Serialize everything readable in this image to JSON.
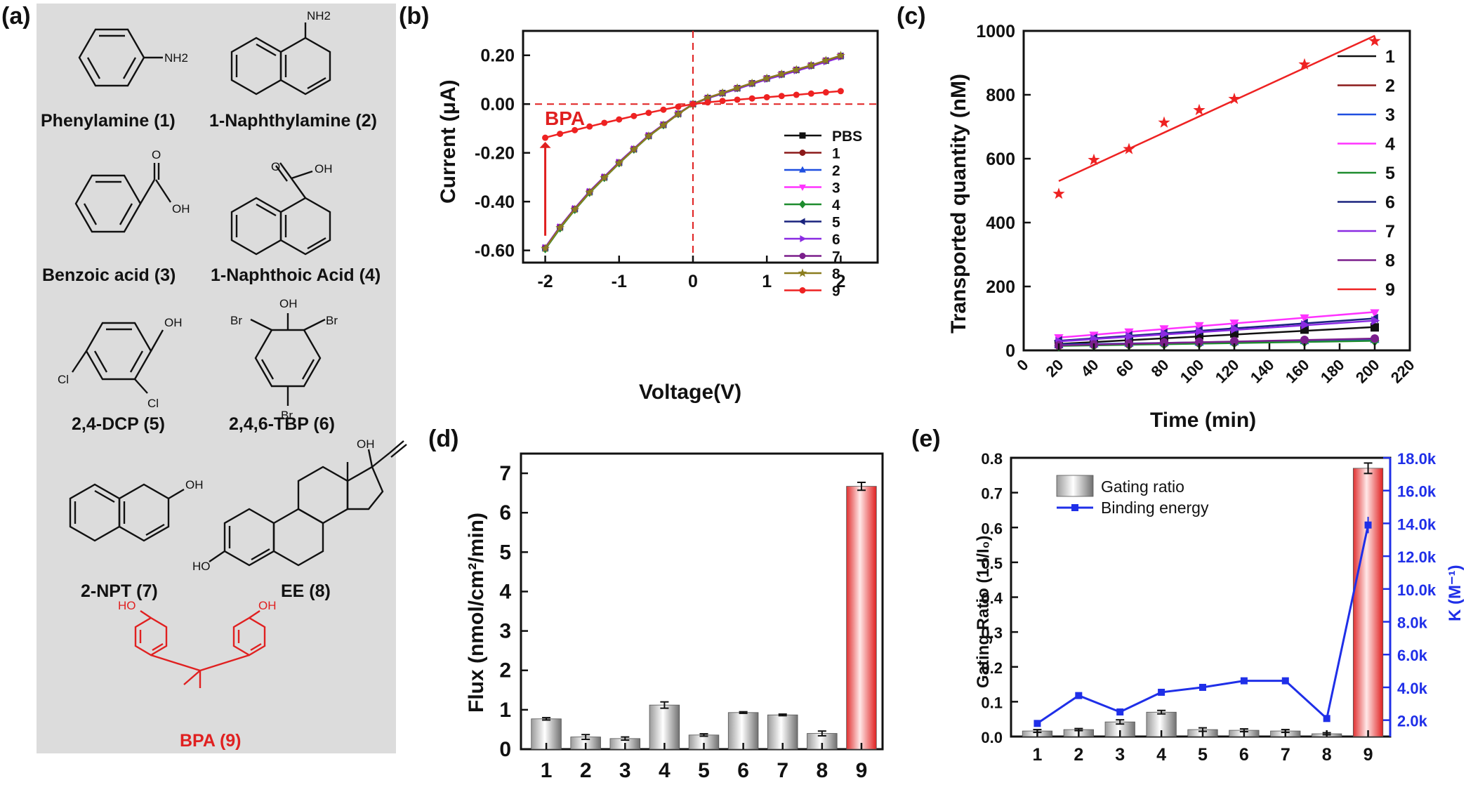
{
  "panel_labels": [
    "(a)",
    "(b)",
    "(c)",
    "(d)",
    "(e)"
  ],
  "compounds": [
    {
      "label": "Phenylamine (1)",
      "groups": [
        "NH2"
      ],
      "color": "#111111"
    },
    {
      "label": "1-Naphthylamine (2)",
      "groups": [
        "NH2"
      ],
      "color": "#111111"
    },
    {
      "label": "Benzoic acid (3)",
      "groups": [
        "O",
        "OH"
      ],
      "color": "#111111"
    },
    {
      "label": "1-Naphthoic Acid (4)",
      "groups": [
        "O",
        "OH"
      ],
      "color": "#111111"
    },
    {
      "label": "2,4-DCP (5)",
      "groups": [
        "OH",
        "Cl",
        "Cl"
      ],
      "color": "#111111"
    },
    {
      "label": "2,4,6-TBP (6)",
      "groups": [
        "OH",
        "Br",
        "Br",
        "Br"
      ],
      "color": "#111111"
    },
    {
      "label": "2-NPT (7)",
      "groups": [
        "OH"
      ],
      "color": "#111111"
    },
    {
      "label": "EE (8)",
      "groups": [
        "OH",
        "HO"
      ],
      "color": "#111111"
    },
    {
      "label": "BPA (9)",
      "groups": [
        "HO",
        "OH"
      ],
      "color": "#e02020"
    }
  ],
  "chart_data": [
    {
      "panel": "(b)",
      "type": "line",
      "xlabel": "Voltage(V)",
      "ylabel": "Current (μA)",
      "xlim": [
        -2.3,
        2.5
      ],
      "ylim": [
        -0.65,
        0.3
      ],
      "xticks": [
        "-2",
        "-1",
        "0",
        "1",
        "2"
      ],
      "yticks": [
        "0.20",
        "0.00",
        "-0.20",
        "-0.40",
        "-0.60"
      ],
      "annotation": "BPA",
      "x": [
        -2.0,
        -1.8,
        -1.6,
        -1.4,
        -1.2,
        -1.0,
        -0.8,
        -0.6,
        -0.4,
        -0.2,
        0.0,
        0.2,
        0.4,
        0.6,
        0.8,
        1.0,
        1.2,
        1.4,
        1.6,
        1.8,
        2.0
      ],
      "series": [
        {
          "name": "PBS",
          "color": "#111111",
          "marker": "square",
          "values": [
            -0.59,
            -0.505,
            -0.43,
            -0.36,
            -0.3,
            -0.24,
            -0.185,
            -0.13,
            -0.085,
            -0.04,
            0.0,
            0.025,
            0.045,
            0.065,
            0.085,
            0.105,
            0.122,
            0.14,
            0.158,
            0.178,
            0.197
          ]
        },
        {
          "name": "1",
          "color": "#8b1a1a",
          "marker": "circle",
          "values": [
            -0.59,
            -0.505,
            -0.43,
            -0.36,
            -0.3,
            -0.24,
            -0.185,
            -0.13,
            -0.085,
            -0.04,
            0.0,
            0.025,
            0.045,
            0.065,
            0.085,
            0.105,
            0.122,
            0.14,
            0.158,
            0.178,
            0.197
          ]
        },
        {
          "name": "2",
          "color": "#1f4fe0",
          "marker": "triangle",
          "values": [
            -0.592,
            -0.507,
            -0.432,
            -0.362,
            -0.302,
            -0.242,
            -0.186,
            -0.131,
            -0.086,
            -0.041,
            0.0,
            0.024,
            0.044,
            0.064,
            0.084,
            0.104,
            0.121,
            0.139,
            0.157,
            0.176,
            0.195
          ]
        },
        {
          "name": "3",
          "color": "#ff33ff",
          "marker": "triangle-down",
          "values": [
            -0.588,
            -0.503,
            -0.428,
            -0.358,
            -0.298,
            -0.238,
            -0.183,
            -0.128,
            -0.084,
            -0.039,
            0.0,
            0.026,
            0.046,
            0.066,
            0.086,
            0.106,
            0.123,
            0.141,
            0.159,
            0.179,
            0.198
          ]
        },
        {
          "name": "4",
          "color": "#1e8c2e",
          "marker": "diamond",
          "values": [
            -0.595,
            -0.51,
            -0.434,
            -0.364,
            -0.303,
            -0.243,
            -0.187,
            -0.132,
            -0.087,
            -0.041,
            0.0,
            0.025,
            0.045,
            0.065,
            0.085,
            0.105,
            0.122,
            0.14,
            0.158,
            0.178,
            0.197
          ]
        },
        {
          "name": "5",
          "color": "#1a237e",
          "marker": "triangle-left",
          "values": [
            -0.59,
            -0.505,
            -0.43,
            -0.36,
            -0.3,
            -0.24,
            -0.185,
            -0.13,
            -0.085,
            -0.04,
            0.0,
            0.025,
            0.045,
            0.065,
            0.085,
            0.105,
            0.122,
            0.14,
            0.158,
            0.178,
            0.197
          ]
        },
        {
          "name": "6",
          "color": "#8a2be2",
          "marker": "triangle-right",
          "values": [
            -0.588,
            -0.503,
            -0.428,
            -0.358,
            -0.298,
            -0.238,
            -0.183,
            -0.128,
            -0.084,
            -0.039,
            0.0,
            0.024,
            0.043,
            0.062,
            0.082,
            0.101,
            0.118,
            0.136,
            0.154,
            0.173,
            0.192
          ]
        },
        {
          "name": "7",
          "color": "#7b1f8c",
          "marker": "circle",
          "values": [
            -0.59,
            -0.505,
            -0.43,
            -0.36,
            -0.3,
            -0.24,
            -0.185,
            -0.13,
            -0.085,
            -0.04,
            0.0,
            0.025,
            0.045,
            0.065,
            0.085,
            0.105,
            0.122,
            0.14,
            0.158,
            0.178,
            0.197
          ]
        },
        {
          "name": "8",
          "color": "#8b7d1f",
          "marker": "star",
          "values": [
            -0.592,
            -0.507,
            -0.432,
            -0.362,
            -0.302,
            -0.242,
            -0.186,
            -0.131,
            -0.086,
            -0.041,
            0.0,
            0.026,
            0.046,
            0.066,
            0.086,
            0.106,
            0.123,
            0.141,
            0.159,
            0.179,
            0.199
          ]
        },
        {
          "name": "9",
          "color": "#ee2222",
          "marker": "circle",
          "values": [
            -0.138,
            -0.122,
            -0.107,
            -0.092,
            -0.077,
            -0.063,
            -0.049,
            -0.036,
            -0.023,
            -0.011,
            0.0,
            0.007,
            0.013,
            0.018,
            0.023,
            0.028,
            0.033,
            0.038,
            0.043,
            0.048,
            0.053
          ]
        }
      ]
    },
    {
      "panel": "(c)",
      "type": "scatter",
      "xlabel": "Time (min)",
      "ylabel": "Transported  quantity (nM)",
      "xlim": [
        0,
        220
      ],
      "ylim": [
        0,
        1000
      ],
      "xticks": [
        "0",
        "20",
        "40",
        "60",
        "80",
        "100",
        "120",
        "140",
        "160",
        "180",
        "200",
        "220"
      ],
      "yticks": [
        "0",
        "200",
        "400",
        "600",
        "800",
        "1000"
      ],
      "x": [
        20,
        40,
        60,
        80,
        100,
        120,
        160,
        200
      ],
      "series": [
        {
          "name": "1",
          "color": "#111111",
          "marker": "square",
          "values": [
            20,
            27,
            33,
            40,
            47,
            53,
            65,
            72
          ],
          "fit": [
            20,
            73
          ]
        },
        {
          "name": "2",
          "color": "#8b1a1a",
          "marker": "circle",
          "values": [
            15,
            17,
            19,
            21,
            23,
            25,
            29,
            33
          ],
          "fit": [
            15,
            33
          ]
        },
        {
          "name": "3",
          "color": "#1f4fe0",
          "marker": "triangle",
          "values": [
            18,
            20,
            22,
            24,
            25,
            27,
            30,
            34
          ],
          "fit": [
            18,
            34
          ]
        },
        {
          "name": "4",
          "color": "#ff33ff",
          "marker": "triangle-down",
          "values": [
            40,
            48,
            58,
            68,
            78,
            86,
            102,
            118
          ],
          "fit": [
            40,
            120
          ]
        },
        {
          "name": "5",
          "color": "#1e8c2e",
          "marker": "diamond",
          "values": [
            14,
            16,
            18,
            20,
            22,
            24,
            27,
            30
          ],
          "fit": [
            14,
            30
          ]
        },
        {
          "name": "6",
          "color": "#1a237e",
          "marker": "triangle-left",
          "values": [
            30,
            38,
            46,
            54,
            62,
            70,
            85,
            100
          ],
          "fit": [
            30,
            100
          ]
        },
        {
          "name": "7",
          "color": "#8a2be2",
          "marker": "triangle-right",
          "values": [
            28,
            36,
            44,
            52,
            60,
            67,
            80,
            93
          ],
          "fit": [
            28,
            93
          ]
        },
        {
          "name": "8",
          "color": "#7b1f8c",
          "marker": "circle",
          "values": [
            16,
            19,
            22,
            25,
            27,
            29,
            33,
            37
          ],
          "fit": [
            16,
            37
          ]
        },
        {
          "name": "9",
          "color": "#ee2222",
          "marker": "star",
          "values": [
            490,
            596,
            630,
            713,
            752,
            787,
            895,
            968
          ],
          "fit": [
            530,
            985
          ]
        }
      ]
    },
    {
      "panel": "(d)",
      "type": "bar",
      "xlabel": "",
      "ylabel": "Flux (nmol/cm²/min)",
      "ylim": [
        0,
        7.5
      ],
      "yticks": [
        "0",
        "1",
        "2",
        "3",
        "4",
        "5",
        "6",
        "7"
      ],
      "categories": [
        "1",
        "2",
        "3",
        "4",
        "5",
        "6",
        "7",
        "8",
        "9"
      ],
      "values": [
        0.77,
        0.31,
        0.27,
        1.12,
        0.36,
        0.93,
        0.87,
        0.4,
        6.67
      ],
      "errors": [
        0.03,
        0.06,
        0.04,
        0.08,
        0.03,
        0.02,
        0.02,
        0.06,
        0.1
      ]
    },
    {
      "panel": "(e)",
      "type": "bar",
      "xlabel": "",
      "ylabel": "Gating  Ratio (1-I/I₀)",
      "ylabel_right": "K (M⁻¹)",
      "ylim": [
        0,
        0.8
      ],
      "ylim_right": [
        1000,
        18000
      ],
      "yticks": [
        "0.0",
        "0.1",
        "0.2",
        "0.3",
        "0.4",
        "0.5",
        "0.6",
        "0.7",
        "0.8"
      ],
      "yticks_right": [
        "2.0k",
        "4.0k",
        "6.0k",
        "8.0k",
        "10.0k",
        "12.0k",
        "14.0k",
        "16.0k",
        "18.0k"
      ],
      "categories": [
        "1",
        "2",
        "3",
        "4",
        "5",
        "6",
        "7",
        "8",
        "9"
      ],
      "series": [
        {
          "name": "Gating ratio",
          "type": "bar",
          "values": [
            0.016,
            0.02,
            0.042,
            0.07,
            0.02,
            0.018,
            0.016,
            0.008,
            0.77
          ],
          "errors": [
            0.004,
            0.003,
            0.006,
            0.005,
            0.005,
            0.004,
            0.004,
            0.003,
            0.015
          ]
        },
        {
          "name": "Binding energy",
          "type": "line",
          "color": "#1f2fe8",
          "values": [
            1800,
            3500,
            2500,
            3700,
            4000,
            4400,
            4400,
            2100,
            13900
          ]
        }
      ]
    }
  ]
}
